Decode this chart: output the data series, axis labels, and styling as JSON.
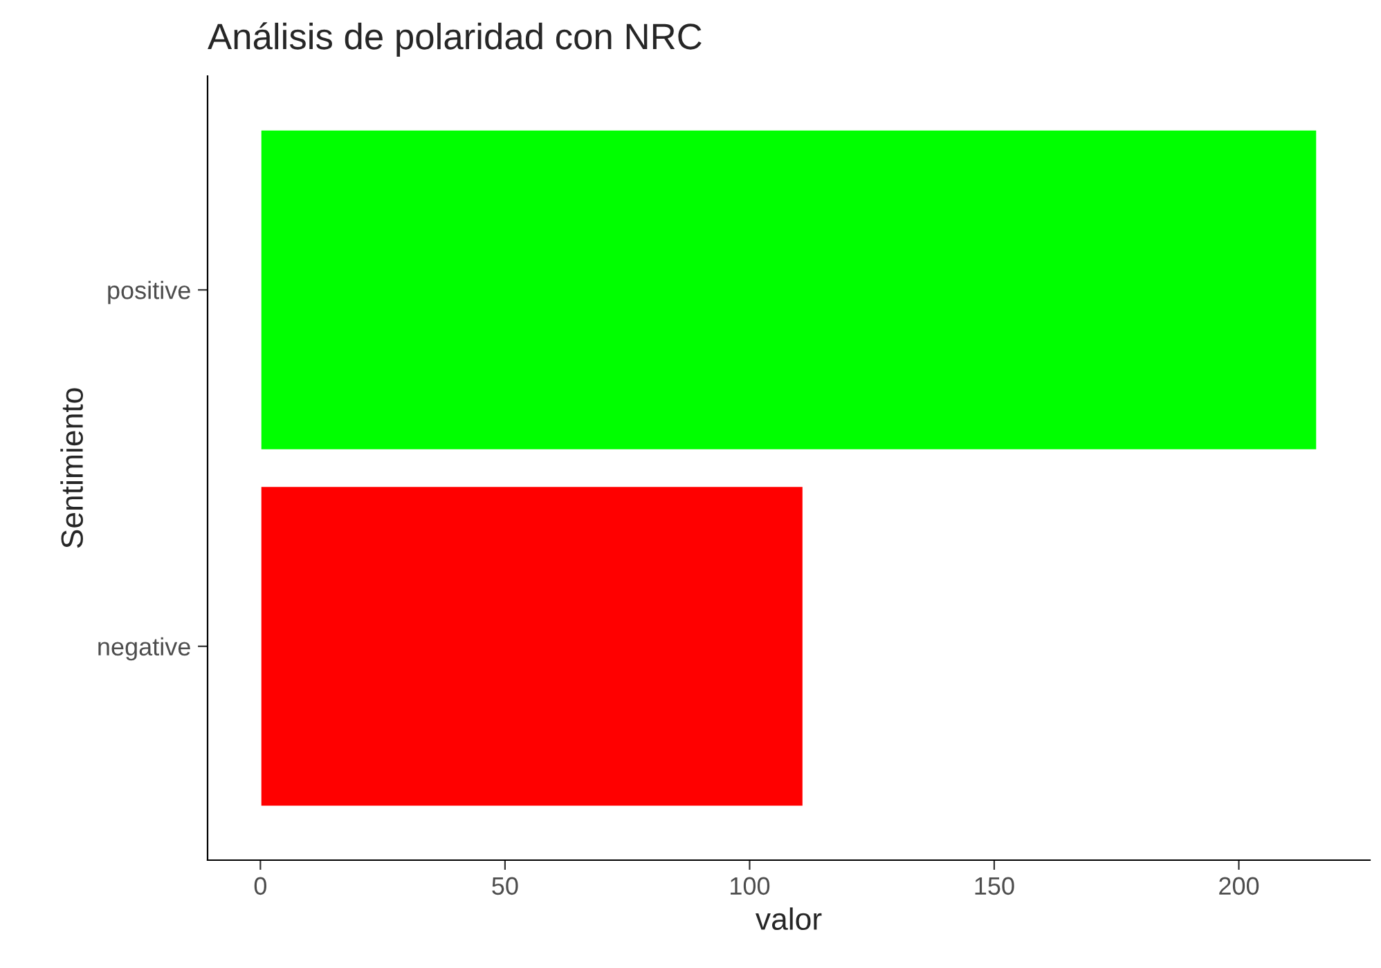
{
  "chart_data": {
    "type": "bar",
    "title": "Análisis de polaridad con NRC",
    "xlabel": "valor",
    "ylabel": "Sentimiento",
    "orientation": "horizontal",
    "categories": [
      "positive",
      "negative"
    ],
    "values": [
      216,
      111
    ],
    "colors": [
      "#00ff00",
      "#ff0000"
    ],
    "xlim": [
      -10.8,
      226.8
    ],
    "xticks": [
      0,
      50,
      100,
      150,
      200
    ],
    "grid": false,
    "legend": false
  }
}
